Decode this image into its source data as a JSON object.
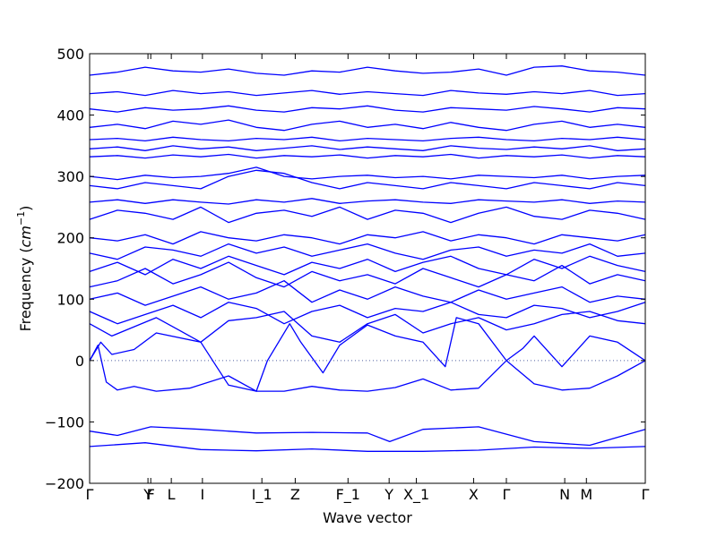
{
  "chart_data": {
    "type": "line",
    "title": "",
    "xlabel": "Wave vector",
    "ylabel": "Frequency (cm⁻¹)",
    "ylabel_parts": {
      "text": "Frequency (",
      "unit": "cm",
      "exp": "−1",
      "close": ")"
    },
    "ylim": [
      -200,
      500
    ],
    "yticks": [
      -200,
      -100,
      0,
      100,
      200,
      300,
      400,
      500
    ],
    "xlim": [
      0,
      1
    ],
    "zero_line": true,
    "grid": false,
    "line_color": "#0000ff",
    "high_symmetry_points": [
      {
        "label": "Γ",
        "x": 0.0
      },
      {
        "label": "Y",
        "x": 0.105
      },
      {
        "label": "F",
        "x": 0.11
      },
      {
        "label": "L",
        "x": 0.147
      },
      {
        "label": "I",
        "x": 0.203
      },
      {
        "label": "I_1",
        "x": 0.31
      },
      {
        "label": "Z",
        "x": 0.37
      },
      {
        "label": "F_1",
        "x": 0.465
      },
      {
        "label": "Y",
        "x": 0.539
      },
      {
        "label": "X_1",
        "x": 0.588
      },
      {
        "label": "X",
        "x": 0.691
      },
      {
        "label": "Γ",
        "x": 0.75
      },
      {
        "label": "N",
        "x": 0.855
      },
      {
        "label": "M",
        "x": 0.894
      },
      {
        "label": "Γ",
        "x": 1.0
      }
    ],
    "series": [
      {
        "x": [
          0,
          0.1,
          0.2,
          0.3,
          0.4,
          0.5,
          0.6,
          0.7,
          0.8,
          0.9,
          1.0
        ],
        "y": [
          -140,
          -134,
          -145,
          -147,
          -144,
          -148,
          -148,
          -146,
          -141,
          -143,
          -140
        ]
      },
      {
        "x": [
          0,
          0.05,
          0.11,
          0.2,
          0.3,
          0.4,
          0.5,
          0.54,
          0.6,
          0.7,
          0.8,
          0.9,
          1.0
        ],
        "y": [
          -115,
          -122,
          -108,
          -112,
          -118,
          -117,
          -118,
          -132,
          -112,
          -108,
          -132,
          -138,
          -112
        ]
      },
      {
        "x": [
          0,
          0.015,
          0.03,
          0.05,
          0.08,
          0.12,
          0.18,
          0.25,
          0.3,
          0.35,
          0.4,
          0.45,
          0.5,
          0.55,
          0.6,
          0.65,
          0.7,
          0.75,
          0.8,
          0.85,
          0.9,
          0.95,
          1.0
        ],
        "y": [
          0,
          25,
          -35,
          -48,
          -42,
          -50,
          -45,
          -25,
          -50,
          -50,
          -42,
          -48,
          -50,
          -44,
          -30,
          -48,
          -45,
          0,
          -38,
          -48,
          -45,
          -25,
          0
        ]
      },
      {
        "x": [
          0,
          0.02,
          0.04,
          0.08,
          0.12,
          0.2,
          0.25,
          0.3,
          0.32,
          0.36,
          0.38,
          0.42,
          0.45,
          0.5,
          0.55,
          0.6,
          0.64,
          0.66,
          0.7,
          0.75,
          0.78,
          0.8,
          0.85,
          0.9,
          0.95,
          1.0
        ],
        "y": [
          0,
          30,
          10,
          18,
          45,
          30,
          -40,
          -50,
          0,
          60,
          30,
          -20,
          25,
          58,
          40,
          30,
          -10,
          70,
          60,
          0,
          20,
          40,
          -10,
          40,
          30,
          0
        ]
      },
      {
        "x": [
          0,
          0.04,
          0.08,
          0.12,
          0.16,
          0.2,
          0.25,
          0.3,
          0.35,
          0.4,
          0.45,
          0.5,
          0.55,
          0.6,
          0.65,
          0.7,
          0.75,
          0.8,
          0.85,
          0.9,
          0.95,
          1.0
        ],
        "y": [
          60,
          40,
          55,
          70,
          50,
          30,
          65,
          70,
          80,
          40,
          30,
          60,
          75,
          45,
          60,
          70,
          50,
          60,
          75,
          80,
          65,
          60
        ]
      },
      {
        "x": [
          0,
          0.05,
          0.1,
          0.15,
          0.2,
          0.25,
          0.3,
          0.35,
          0.4,
          0.45,
          0.5,
          0.55,
          0.6,
          0.65,
          0.7,
          0.75,
          0.8,
          0.85,
          0.9,
          0.95,
          1.0
        ],
        "y": [
          80,
          60,
          75,
          90,
          70,
          95,
          85,
          60,
          80,
          90,
          70,
          85,
          80,
          95,
          75,
          70,
          90,
          85,
          70,
          80,
          95
        ]
      },
      {
        "x": [
          0,
          0.05,
          0.1,
          0.15,
          0.2,
          0.25,
          0.3,
          0.35,
          0.4,
          0.45,
          0.5,
          0.55,
          0.6,
          0.65,
          0.7,
          0.75,
          0.8,
          0.85,
          0.9,
          0.95,
          1.0
        ],
        "y": [
          100,
          110,
          90,
          105,
          120,
          100,
          110,
          130,
          95,
          115,
          100,
          120,
          105,
          95,
          115,
          100,
          110,
          120,
          95,
          105,
          100
        ]
      },
      {
        "x": [
          0,
          0.05,
          0.1,
          0.15,
          0.2,
          0.25,
          0.3,
          0.35,
          0.4,
          0.45,
          0.5,
          0.55,
          0.6,
          0.65,
          0.7,
          0.75,
          0.8,
          0.85,
          0.9,
          0.95,
          1.0
        ],
        "y": [
          120,
          130,
          150,
          125,
          140,
          160,
          135,
          120,
          145,
          130,
          140,
          125,
          150,
          135,
          120,
          140,
          130,
          155,
          125,
          140,
          130
        ]
      },
      {
        "x": [
          0,
          0.05,
          0.1,
          0.15,
          0.2,
          0.25,
          0.3,
          0.35,
          0.4,
          0.45,
          0.5,
          0.55,
          0.6,
          0.65,
          0.7,
          0.75,
          0.8,
          0.85,
          0.9,
          0.95,
          1.0
        ],
        "y": [
          145,
          160,
          140,
          165,
          150,
          170,
          155,
          140,
          160,
          150,
          165,
          145,
          160,
          170,
          150,
          140,
          165,
          150,
          170,
          155,
          145
        ]
      },
      {
        "x": [
          0,
          0.05,
          0.1,
          0.15,
          0.2,
          0.25,
          0.3,
          0.35,
          0.4,
          0.45,
          0.5,
          0.55,
          0.6,
          0.65,
          0.7,
          0.75,
          0.8,
          0.85,
          0.9,
          0.95,
          1.0
        ],
        "y": [
          175,
          165,
          185,
          180,
          170,
          190,
          175,
          185,
          170,
          180,
          190,
          175,
          165,
          180,
          185,
          170,
          180,
          175,
          190,
          170,
          175
        ]
      },
      {
        "x": [
          0,
          0.05,
          0.1,
          0.15,
          0.2,
          0.25,
          0.3,
          0.35,
          0.4,
          0.45,
          0.5,
          0.55,
          0.6,
          0.65,
          0.7,
          0.75,
          0.8,
          0.85,
          0.9,
          0.95,
          1.0
        ],
        "y": [
          200,
          195,
          205,
          190,
          210,
          200,
          195,
          205,
          200,
          190,
          205,
          200,
          210,
          195,
          205,
          200,
          190,
          205,
          200,
          195,
          205
        ]
      },
      {
        "x": [
          0,
          0.05,
          0.1,
          0.15,
          0.2,
          0.25,
          0.3,
          0.35,
          0.4,
          0.45,
          0.5,
          0.55,
          0.6,
          0.65,
          0.7,
          0.75,
          0.8,
          0.85,
          0.9,
          0.95,
          1.0
        ],
        "y": [
          230,
          245,
          240,
          230,
          250,
          225,
          240,
          245,
          235,
          250,
          230,
          245,
          240,
          225,
          240,
          250,
          235,
          230,
          245,
          240,
          230
        ]
      },
      {
        "x": [
          0,
          0.05,
          0.1,
          0.15,
          0.2,
          0.25,
          0.3,
          0.35,
          0.4,
          0.45,
          0.5,
          0.55,
          0.6,
          0.65,
          0.7,
          0.75,
          0.8,
          0.85,
          0.9,
          0.95,
          1.0
        ],
        "y": [
          258,
          262,
          256,
          262,
          258,
          255,
          262,
          258,
          264,
          256,
          260,
          262,
          258,
          256,
          262,
          260,
          258,
          262,
          256,
          260,
          258
        ]
      },
      {
        "x": [
          0,
          0.05,
          0.1,
          0.15,
          0.2,
          0.25,
          0.3,
          0.35,
          0.4,
          0.45,
          0.5,
          0.55,
          0.6,
          0.65,
          0.7,
          0.75,
          0.8,
          0.85,
          0.9,
          0.95,
          1.0
        ],
        "y": [
          285,
          280,
          290,
          285,
          280,
          300,
          310,
          305,
          290,
          280,
          290,
          285,
          280,
          290,
          285,
          280,
          290,
          285,
          280,
          290,
          285
        ]
      },
      {
        "x": [
          0,
          0.05,
          0.1,
          0.15,
          0.2,
          0.25,
          0.3,
          0.35,
          0.4,
          0.45,
          0.5,
          0.55,
          0.6,
          0.65,
          0.7,
          0.75,
          0.8,
          0.85,
          0.9,
          0.95,
          1.0
        ],
        "y": [
          300,
          295,
          302,
          298,
          300,
          305,
          315,
          300,
          296,
          300,
          302,
          298,
          300,
          296,
          302,
          300,
          298,
          302,
          296,
          300,
          302
        ]
      },
      {
        "x": [
          0,
          0.05,
          0.1,
          0.15,
          0.2,
          0.25,
          0.3,
          0.35,
          0.4,
          0.45,
          0.5,
          0.55,
          0.6,
          0.65,
          0.7,
          0.75,
          0.8,
          0.85,
          0.9,
          0.95,
          1.0
        ],
        "y": [
          332,
          334,
          330,
          335,
          332,
          336,
          330,
          334,
          332,
          335,
          330,
          334,
          332,
          336,
          330,
          334,
          332,
          335,
          330,
          334,
          332
        ]
      },
      {
        "x": [
          0,
          0.05,
          0.1,
          0.15,
          0.2,
          0.25,
          0.3,
          0.35,
          0.4,
          0.45,
          0.5,
          0.55,
          0.6,
          0.65,
          0.7,
          0.75,
          0.8,
          0.85,
          0.9,
          0.95,
          1.0
        ],
        "y": [
          345,
          348,
          342,
          350,
          345,
          348,
          342,
          346,
          350,
          344,
          348,
          345,
          342,
          350,
          346,
          344,
          348,
          345,
          350,
          342,
          345
        ]
      },
      {
        "x": [
          0,
          0.05,
          0.1,
          0.15,
          0.2,
          0.25,
          0.3,
          0.35,
          0.4,
          0.45,
          0.5,
          0.55,
          0.6,
          0.65,
          0.7,
          0.75,
          0.8,
          0.85,
          0.9,
          0.95,
          1.0
        ],
        "y": [
          360,
          362,
          358,
          364,
          360,
          358,
          362,
          360,
          364,
          358,
          362,
          360,
          358,
          362,
          364,
          360,
          358,
          362,
          360,
          364,
          360
        ]
      },
      {
        "x": [
          0,
          0.05,
          0.1,
          0.15,
          0.2,
          0.25,
          0.3,
          0.35,
          0.4,
          0.45,
          0.5,
          0.55,
          0.6,
          0.65,
          0.7,
          0.75,
          0.8,
          0.85,
          0.9,
          0.95,
          1.0
        ],
        "y": [
          380,
          385,
          378,
          390,
          385,
          392,
          380,
          375,
          385,
          390,
          380,
          385,
          378,
          388,
          380,
          375,
          385,
          390,
          380,
          385,
          380
        ]
      },
      {
        "x": [
          0,
          0.05,
          0.1,
          0.15,
          0.2,
          0.25,
          0.3,
          0.35,
          0.4,
          0.45,
          0.5,
          0.55,
          0.6,
          0.65,
          0.7,
          0.75,
          0.8,
          0.85,
          0.9,
          0.95,
          1.0
        ],
        "y": [
          410,
          405,
          412,
          408,
          410,
          415,
          408,
          405,
          412,
          410,
          415,
          408,
          405,
          412,
          410,
          408,
          414,
          410,
          405,
          412,
          410
        ]
      },
      {
        "x": [
          0,
          0.05,
          0.1,
          0.15,
          0.2,
          0.25,
          0.3,
          0.35,
          0.4,
          0.45,
          0.5,
          0.55,
          0.6,
          0.65,
          0.7,
          0.75,
          0.8,
          0.85,
          0.9,
          0.95,
          1.0
        ],
        "y": [
          435,
          438,
          432,
          440,
          435,
          438,
          432,
          436,
          440,
          434,
          438,
          435,
          432,
          440,
          436,
          434,
          438,
          435,
          440,
          432,
          435
        ]
      },
      {
        "x": [
          0,
          0.05,
          0.1,
          0.15,
          0.2,
          0.25,
          0.3,
          0.35,
          0.4,
          0.45,
          0.5,
          0.55,
          0.6,
          0.65,
          0.7,
          0.75,
          0.8,
          0.85,
          0.9,
          0.95,
          1.0
        ],
        "y": [
          465,
          470,
          478,
          472,
          470,
          475,
          468,
          465,
          472,
          470,
          478,
          472,
          468,
          470,
          475,
          465,
          478,
          480,
          472,
          470,
          465
        ]
      }
    ]
  }
}
